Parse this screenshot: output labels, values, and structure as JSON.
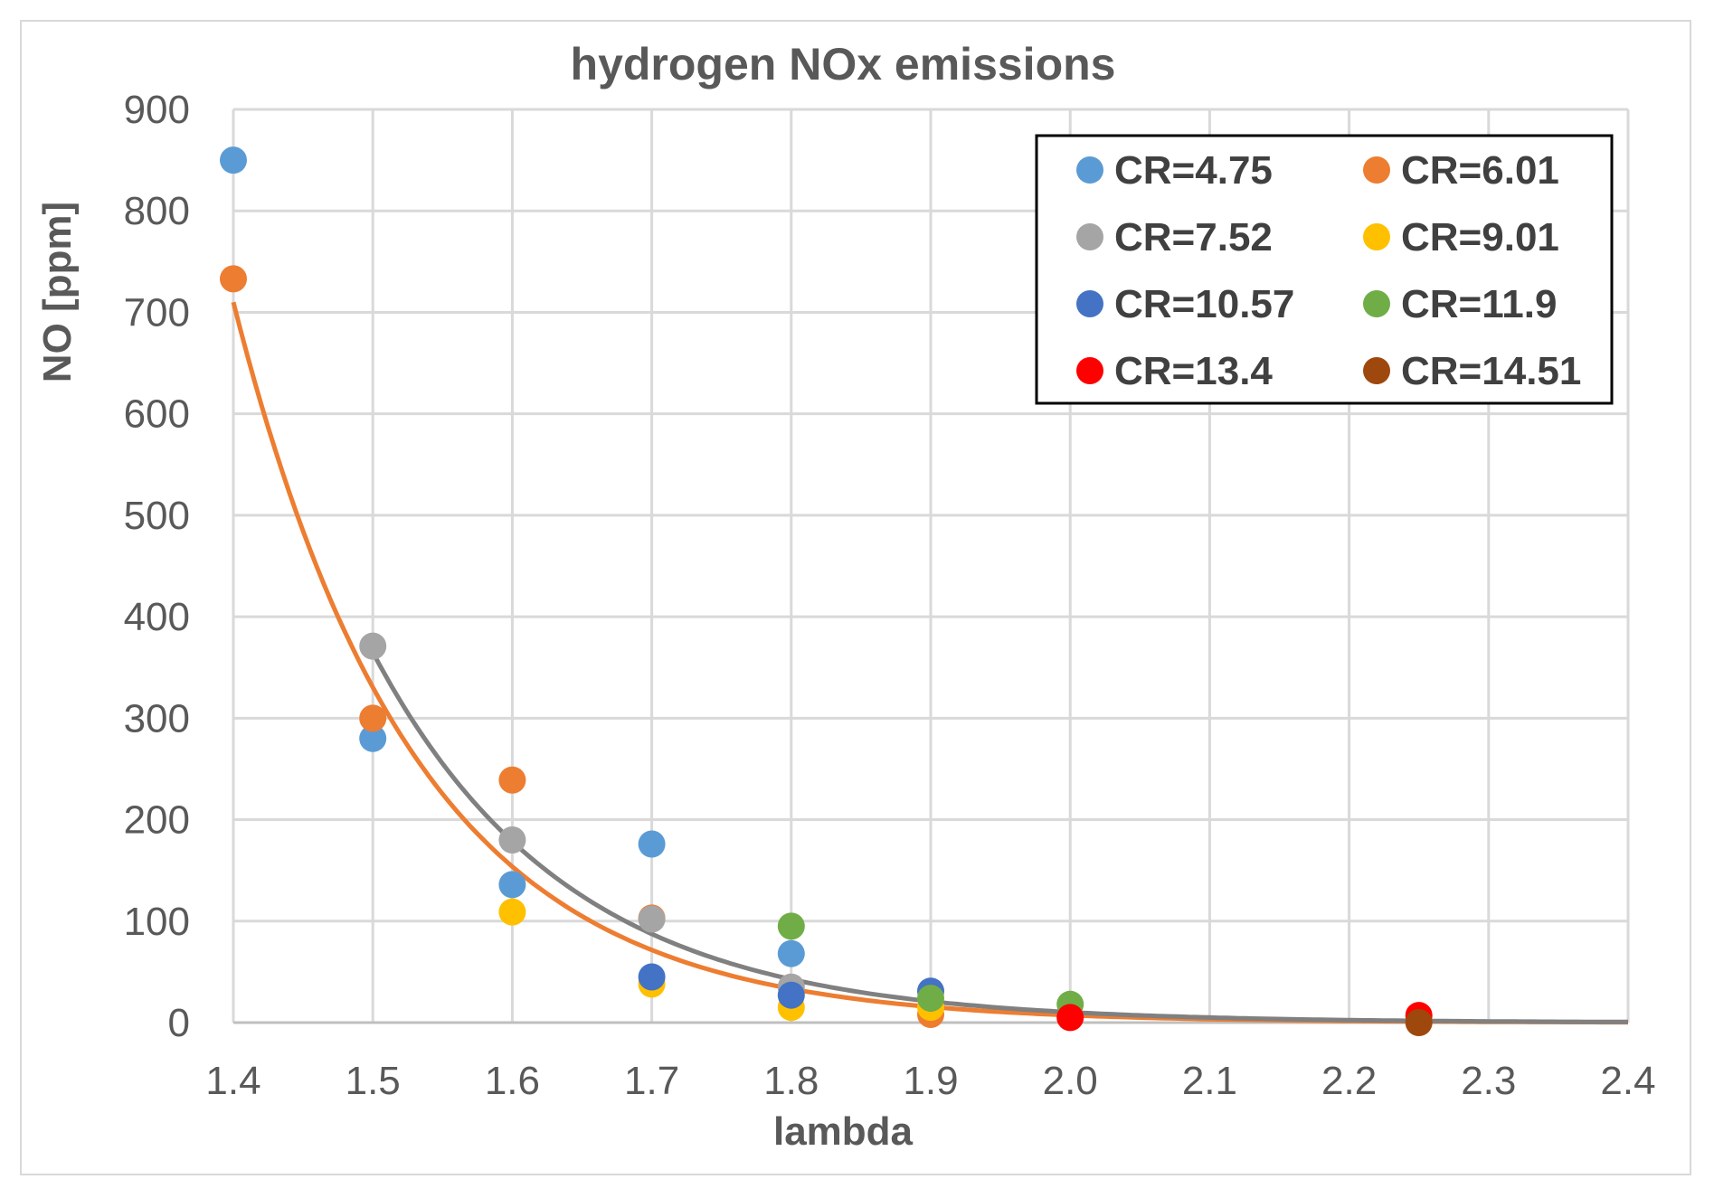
{
  "chart_data": {
    "type": "scatter",
    "title": "hydrogen NOx emissions",
    "xlabel": "lambda",
    "ylabel": "NO [ppm]",
    "xlim": [
      1.4,
      2.4
    ],
    "ylim": [
      0,
      900
    ],
    "x_ticks": [
      "1.4",
      "1.5",
      "1.6",
      "1.7",
      "1.8",
      "1.9",
      "2.0",
      "2.1",
      "2.2",
      "2.3",
      "2.4"
    ],
    "y_ticks": [
      "0",
      "100",
      "200",
      "300",
      "400",
      "500",
      "600",
      "700",
      "800",
      "900"
    ],
    "grid": true,
    "legend_position": "top-right",
    "series": [
      {
        "name": "CR=4.75",
        "color": "#5b9bd5",
        "points": [
          [
            1.4,
            850
          ],
          [
            1.5,
            280
          ],
          [
            1.6,
            136
          ],
          [
            1.7,
            176
          ],
          [
            1.8,
            68
          ]
        ]
      },
      {
        "name": "CR=6.01",
        "color": "#ed7d31",
        "points": [
          [
            1.4,
            733
          ],
          [
            1.5,
            300
          ],
          [
            1.6,
            239
          ],
          [
            1.7,
            103
          ],
          [
            1.9,
            8
          ]
        ]
      },
      {
        "name": "CR=7.52",
        "color": "#a5a5a5",
        "points": [
          [
            1.5,
            371
          ],
          [
            1.6,
            180
          ],
          [
            1.7,
            102
          ],
          [
            1.8,
            35
          ]
        ]
      },
      {
        "name": "CR=9.01",
        "color": "#ffc000",
        "points": [
          [
            1.6,
            109
          ],
          [
            1.7,
            38
          ],
          [
            1.8,
            15
          ],
          [
            1.9,
            15
          ]
        ]
      },
      {
        "name": "CR=10.57",
        "color": "#4472c4",
        "points": [
          [
            1.7,
            45
          ],
          [
            1.8,
            27
          ],
          [
            1.9,
            31
          ]
        ]
      },
      {
        "name": "CR=11.9",
        "color": "#70ad47",
        "points": [
          [
            1.8,
            95
          ],
          [
            1.9,
            24
          ],
          [
            2.0,
            18
          ]
        ]
      },
      {
        "name": "CR=13.4",
        "color": "#ff0000",
        "points": [
          [
            2.0,
            5
          ],
          [
            2.25,
            7
          ]
        ]
      },
      {
        "name": "CR=14.51",
        "color": "#9e480e",
        "points": [
          [
            2.25,
            0
          ]
        ]
      }
    ],
    "trendlines": [
      {
        "type": "exponential",
        "color": "#ed7d31",
        "a": 710,
        "b": 7.65,
        "x0": 1.4,
        "x_start": 1.4,
        "x_end": 2.4
      },
      {
        "type": "exponential",
        "color": "#808080",
        "a": 365,
        "b": 7.15,
        "x0": 1.5,
        "x_start": 1.5,
        "x_end": 2.4
      }
    ]
  }
}
